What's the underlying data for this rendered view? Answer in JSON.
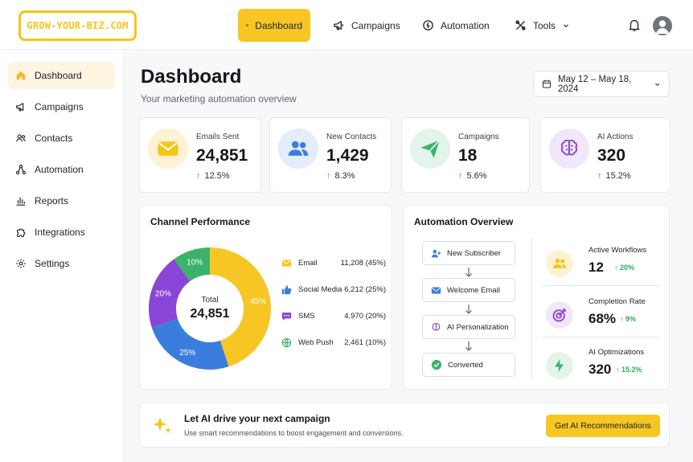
{
  "brand": {
    "logo_text": "GROW-YOUR-BIZ.COM",
    "accent": "#f7c624"
  },
  "topnav": [
    {
      "label": "Dashboard",
      "icon": "grid-icon",
      "active": true
    },
    {
      "label": "Campaigns",
      "icon": "megaphone-icon",
      "active": false
    },
    {
      "label": "Automation",
      "icon": "automation-icon",
      "active": false
    },
    {
      "label": "Tools",
      "icon": "tools-icon",
      "active": false
    }
  ],
  "header_icons": [
    "bell-icon",
    "user-avatar-icon"
  ],
  "sidebar": {
    "items": [
      {
        "label": "Dashboard",
        "icon": "home-icon",
        "active": true
      },
      {
        "label": "Campaigns",
        "icon": "megaphone-icon",
        "active": false
      },
      {
        "label": "Contacts",
        "icon": "contacts-icon",
        "active": false
      },
      {
        "label": "Automation",
        "icon": "automation-icon",
        "active": false
      },
      {
        "label": "Reports",
        "icon": "bar-chart-icon",
        "active": false
      },
      {
        "label": "Integrations",
        "icon": "puzzle-icon",
        "active": false
      },
      {
        "label": "Settings",
        "icon": "gear-icon",
        "active": false
      }
    ]
  },
  "page": {
    "title": "Dashboard",
    "subtitle": "Your marketing automation overview",
    "date_range": "May 12 – May 18, 2024"
  },
  "stats": [
    {
      "label": "Emails Sent",
      "value": "24,851",
      "change": "12.5%",
      "icon": "envelope-icon",
      "color": "#f5c518",
      "bg": "#fdf3d4"
    },
    {
      "label": "New Contacts",
      "value": "1,429",
      "change": "8.3%",
      "icon": "users-icon",
      "color": "#3b7ddd",
      "bg": "#e3edfb"
    },
    {
      "label": "Campaigns",
      "value": "18",
      "change": "5.6%",
      "icon": "paper-plane-icon",
      "color": "#3bb36a",
      "bg": "#e3f5ea"
    },
    {
      "label": "AI Actions",
      "value": "320",
      "change": "15.2%",
      "icon": "brain-icon",
      "color": "#8a45d6",
      "bg": "#f1e7fb"
    }
  ],
  "channel_performance": {
    "title": "Channel Performance",
    "total_label": "Total",
    "total_value": "24,851",
    "legend": [
      {
        "name": "Email",
        "value": "11,208 (45%)",
        "icon": "envelope-icon",
        "color": "#f5c518"
      },
      {
        "name": "Social Media",
        "value": "6,212 (25%)",
        "icon": "thumbs-up-icon",
        "color": "#3b7ddd"
      },
      {
        "name": "SMS",
        "value": "4,970 (20%)",
        "icon": "chat-icon",
        "color": "#8a45d6"
      },
      {
        "name": "Web Push",
        "value": "2,461 (10%)",
        "icon": "globe-icon",
        "color": "#3bb36a"
      }
    ]
  },
  "chart_data": {
    "type": "pie",
    "categories": [
      "Email",
      "Social Media",
      "SMS",
      "Web Push"
    ],
    "values": [
      45,
      25,
      20,
      10
    ],
    "counts": [
      11208,
      6212,
      4970,
      2461
    ],
    "slice_labels": [
      "45%",
      "25%",
      "20%",
      "10%"
    ],
    "colors": [
      "#f7c624",
      "#3b7ddd",
      "#8a45d6",
      "#3bb36a"
    ],
    "title": "Channel Performance",
    "center_label": "Total",
    "center_value": "24,851"
  },
  "automation_overview": {
    "title": "Automation Overview",
    "flow": [
      {
        "label": "New Subscriber",
        "icon": "add-user-icon"
      },
      {
        "label": "Welcome Email",
        "icon": "envelope-icon"
      },
      {
        "label": "AI Personalization",
        "icon": "brain-icon"
      },
      {
        "label": "Converted",
        "icon": "check-circle-icon"
      }
    ],
    "metrics": [
      {
        "label": "Active Workflows",
        "value": "12",
        "change": "20%",
        "icon": "users-icon",
        "color": "#f5c518",
        "bg": "#fdf3d4"
      },
      {
        "label": "Completion Rate",
        "value": "68%",
        "change": "9%",
        "icon": "target-icon",
        "color": "#8a45d6",
        "bg": "#f1e7fb"
      },
      {
        "label": "AI Optimizations",
        "value": "320",
        "change": "15.2%",
        "icon": "lightning-icon",
        "color": "#3bb36a",
        "bg": "#e3f5ea"
      }
    ]
  },
  "cta": {
    "title": "Let AI drive your next campaign",
    "subtitle": "Use smart recommendations to boost engagement and conversions.",
    "button": "Get AI Recommendations",
    "icon": "sparkles-icon"
  }
}
